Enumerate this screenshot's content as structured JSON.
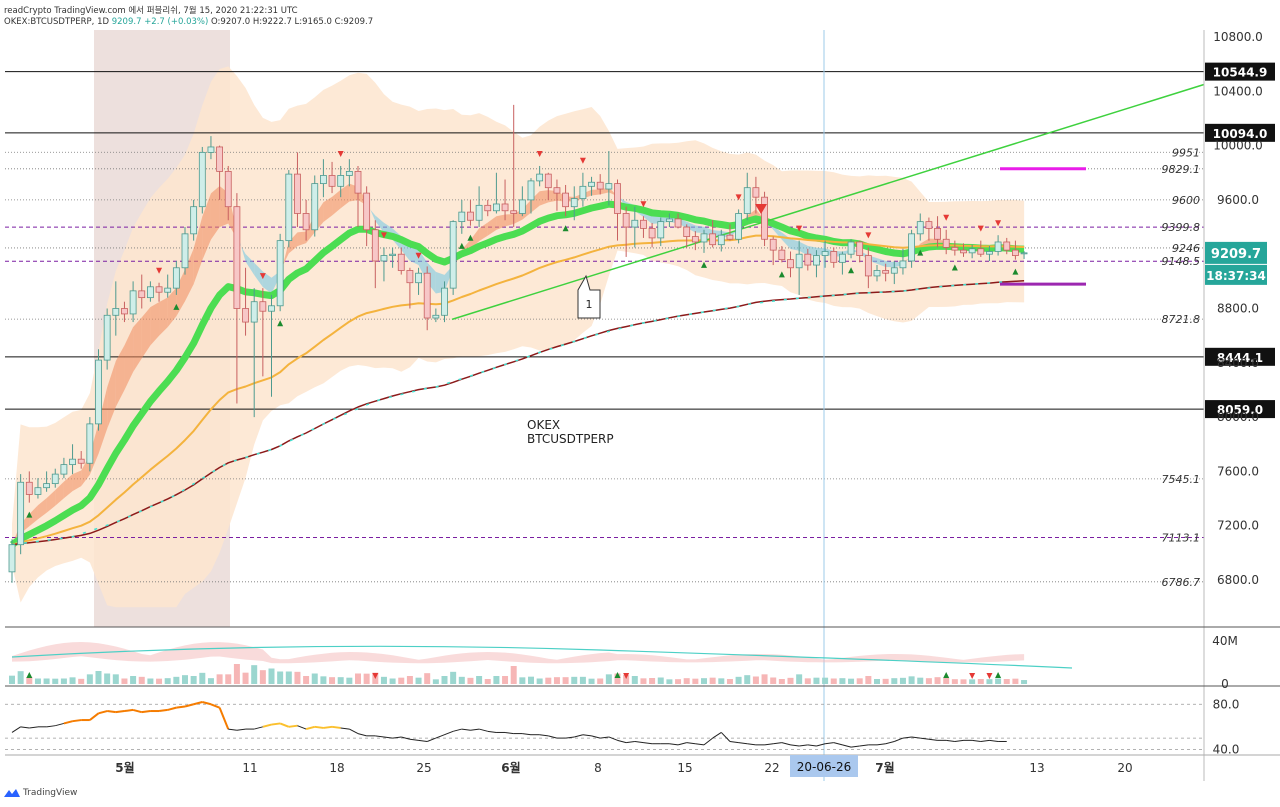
{
  "header": {
    "source_line": "readCrypto TradingView.com 에서 퍼블리쉬, 7월 15, 2020 21:22:31 UTC",
    "symbol": "OKEX:BTCUSDTPERP, 1D",
    "last": "9209.7",
    "change": "+2.7 (+0.03%)",
    "ohlc": "O:9207.0 H:9222.7 L:9165.0 C:9209.7"
  },
  "footer": {
    "brand": "TradingView"
  },
  "watermark": {
    "line1": "OKEX",
    "line2": "BTCUSDTPERP"
  },
  "colors": {
    "up": "#26a69a",
    "down": "#ef5350",
    "band": "#fde5cf",
    "selection": "#ede0dd",
    "ema_green": "#4cdd52",
    "ema_orange": "#f4b33e",
    "magenta": "#e91ee9",
    "purple": "#9c27b0"
  },
  "chart_data": {
    "type": "candlestick",
    "symbol": "OKEX:BTCUSDTPERP",
    "timeframe": "1D",
    "ylim": [
      6500,
      10900
    ],
    "y_ticks": [
      "6800.0",
      "7200.0",
      "7600.0",
      "8000.0",
      "8400.0",
      "8800.0",
      "9200.0",
      "9600.0",
      "10000.0",
      "10400.0",
      "10800.0"
    ],
    "x_ticks": [
      "5월",
      "11",
      "18",
      "25",
      "6월",
      "8",
      "15",
      "22",
      "7월",
      "13",
      "20"
    ],
    "x_crosshair_label": "20-06-26",
    "levels_boxed": [
      {
        "value": 10544.9,
        "label": "10544.9"
      },
      {
        "value": 10094.0,
        "label": "10094.0"
      },
      {
        "value": 8444.1,
        "label": "8444.1"
      },
      {
        "value": 8059.0,
        "label": "8059.0"
      }
    ],
    "levels_dotted": [
      {
        "value": 9951,
        "label": "9951"
      },
      {
        "value": 9829.1,
        "label": "9829.1"
      },
      {
        "value": 9600,
        "label": "9600"
      },
      {
        "value": 9399.8,
        "label": "9399.8"
      },
      {
        "value": 9246,
        "label": "9246"
      },
      {
        "value": 9148.5,
        "label": "9148.5"
      },
      {
        "value": 8721.8,
        "label": "8721.8"
      },
      {
        "value": 7545.1,
        "label": "7545.1"
      },
      {
        "value": 7113.1,
        "label": "7113.1"
      },
      {
        "value": 6786.7,
        "label": "6786.7"
      }
    ],
    "last_price": {
      "value": 9209.7,
      "label": "9209.7",
      "countdown": "18:37:34"
    },
    "annotation": "1",
    "candles_ohlc": [
      [
        6860,
        7100,
        6780,
        7060
      ],
      [
        7060,
        7580,
        6990,
        7520
      ],
      [
        7520,
        7600,
        7370,
        7430
      ],
      [
        7430,
        7550,
        7400,
        7480
      ],
      [
        7480,
        7600,
        7450,
        7510
      ],
      [
        7510,
        7620,
        7480,
        7580
      ],
      [
        7580,
        7700,
        7550,
        7650
      ],
      [
        7650,
        7800,
        7580,
        7690
      ],
      [
        7690,
        7750,
        7620,
        7660
      ],
      [
        7660,
        8000,
        7600,
        7950
      ],
      [
        7950,
        8500,
        7900,
        8420
      ],
      [
        8420,
        8800,
        8350,
        8750
      ],
      [
        8750,
        9000,
        8600,
        8800
      ],
      [
        8800,
        8850,
        8700,
        8760
      ],
      [
        8760,
        9000,
        8700,
        8930
      ],
      [
        8930,
        9050,
        8800,
        8880
      ],
      [
        8880,
        9000,
        8850,
        8960
      ],
      [
        8960,
        8990,
        8850,
        8920
      ],
      [
        8920,
        9050,
        8880,
        8950
      ],
      [
        8950,
        9150,
        8900,
        9100
      ],
      [
        9100,
        9400,
        9050,
        9350
      ],
      [
        9350,
        9600,
        9300,
        9550
      ],
      [
        9550,
        9990,
        9500,
        9950
      ],
      [
        9950,
        10070,
        9900,
        9990
      ],
      [
        9990,
        10000,
        9600,
        9810
      ],
      [
        9810,
        9850,
        9450,
        9550
      ],
      [
        9550,
        9650,
        8100,
        8800
      ],
      [
        8800,
        9100,
        8600,
        8700
      ],
      [
        8700,
        8950,
        8000,
        8850
      ],
      [
        8850,
        8950,
        8300,
        8780
      ],
      [
        8780,
        8900,
        8150,
        8820
      ],
      [
        8820,
        9350,
        8780,
        9300
      ],
      [
        9300,
        9820,
        9250,
        9790
      ],
      [
        9790,
        9950,
        9400,
        9500
      ],
      [
        9500,
        9600,
        9300,
        9380
      ],
      [
        9380,
        9780,
        9330,
        9720
      ],
      [
        9720,
        9900,
        9620,
        9780
      ],
      [
        9780,
        9880,
        9650,
        9700
      ],
      [
        9700,
        9850,
        9620,
        9780
      ],
      [
        9780,
        9900,
        9700,
        9810
      ],
      [
        9810,
        9850,
        9400,
        9650
      ],
      [
        9650,
        9700,
        9260,
        9380
      ],
      [
        9380,
        9450,
        8950,
        9150
      ],
      [
        9150,
        9250,
        9000,
        9190
      ],
      [
        9190,
        9250,
        9100,
        9200
      ],
      [
        9200,
        9250,
        9050,
        9080
      ],
      [
        9080,
        9100,
        8800,
        8990
      ],
      [
        8990,
        9100,
        8900,
        9060
      ],
      [
        9060,
        9110,
        8640,
        8730
      ],
      [
        8730,
        8800,
        8700,
        8750
      ],
      [
        8750,
        9000,
        8700,
        8950
      ],
      [
        8950,
        9450,
        8900,
        9440
      ],
      [
        9440,
        9600,
        9350,
        9510
      ],
      [
        9510,
        9600,
        9410,
        9450
      ],
      [
        9450,
        9700,
        9400,
        9560
      ],
      [
        9560,
        9600,
        9480,
        9520
      ],
      [
        9520,
        9800,
        9500,
        9570
      ],
      [
        9570,
        9750,
        9450,
        9520
      ],
      [
        9520,
        10300,
        9400,
        9500
      ],
      [
        9500,
        9700,
        9480,
        9600
      ],
      [
        9600,
        9760,
        9500,
        9740
      ],
      [
        9740,
        9850,
        9700,
        9790
      ],
      [
        9790,
        9800,
        9600,
        9690
      ],
      [
        9690,
        9750,
        9520,
        9650
      ],
      [
        9650,
        9710,
        9480,
        9550
      ],
      [
        9550,
        9700,
        9450,
        9610
      ],
      [
        9610,
        9800,
        9550,
        9700
      ],
      [
        9700,
        9770,
        9630,
        9730
      ],
      [
        9730,
        9790,
        9640,
        9680
      ],
      [
        9680,
        9960,
        9560,
        9720
      ],
      [
        9720,
        9750,
        9300,
        9500
      ],
      [
        9500,
        9550,
        9180,
        9400
      ],
      [
        9400,
        9550,
        9250,
        9450
      ],
      [
        9450,
        9480,
        9320,
        9390
      ],
      [
        9390,
        9430,
        9250,
        9320
      ],
      [
        9320,
        9470,
        9260,
        9440
      ],
      [
        9440,
        9500,
        9400,
        9460
      ],
      [
        9460,
        9500,
        9390,
        9400
      ],
      [
        9400,
        9420,
        9250,
        9330
      ],
      [
        9330,
        9370,
        9230,
        9290
      ],
      [
        9290,
        9380,
        9210,
        9350
      ],
      [
        9350,
        9450,
        9250,
        9270
      ],
      [
        9270,
        9380,
        9220,
        9340
      ],
      [
        9340,
        9420,
        9300,
        9310
      ],
      [
        9310,
        9530,
        9280,
        9500
      ],
      [
        9500,
        9800,
        9450,
        9690
      ],
      [
        9690,
        9770,
        9500,
        9620
      ],
      [
        9620,
        9660,
        9260,
        9310
      ],
      [
        9310,
        9330,
        9120,
        9230
      ],
      [
        9230,
        9260,
        9140,
        9160
      ],
      [
        9160,
        9220,
        9030,
        9100
      ],
      [
        9100,
        9300,
        8900,
        9200
      ],
      [
        9200,
        9240,
        9080,
        9120
      ],
      [
        9120,
        9230,
        9030,
        9190
      ],
      [
        9190,
        9300,
        9100,
        9220
      ],
      [
        9220,
        9250,
        9100,
        9140
      ],
      [
        9140,
        9220,
        9050,
        9200
      ],
      [
        9200,
        9310,
        9170,
        9290
      ],
      [
        9290,
        9300,
        9140,
        9190
      ],
      [
        9190,
        9250,
        8950,
        9040
      ],
      [
        9040,
        9120,
        9000,
        9080
      ],
      [
        9080,
        9130,
        9000,
        9060
      ],
      [
        9060,
        9150,
        8980,
        9100
      ],
      [
        9100,
        9240,
        9050,
        9150
      ],
      [
        9150,
        9380,
        9100,
        9350
      ],
      [
        9350,
        9500,
        9300,
        9440
      ],
      [
        9440,
        9470,
        9300,
        9390
      ],
      [
        9390,
        9480,
        9250,
        9310
      ],
      [
        9310,
        9380,
        9200,
        9250
      ],
      [
        9250,
        9300,
        9190,
        9230
      ],
      [
        9230,
        9280,
        9180,
        9210
      ],
      [
        9210,
        9270,
        9170,
        9240
      ],
      [
        9240,
        9300,
        9180,
        9200
      ],
      [
        9200,
        9260,
        9150,
        9220
      ],
      [
        9220,
        9340,
        9190,
        9290
      ],
      [
        9290,
        9320,
        9200,
        9230
      ],
      [
        9230,
        9300,
        9160,
        9190
      ],
      [
        9207,
        9223,
        9165,
        9210
      ]
    ],
    "volume_axis_ticks": [
      "40M",
      "0"
    ],
    "oscillator_axis_ticks": [
      "80.0",
      "40.0"
    ],
    "oscillator_levels": [
      80,
      50,
      40
    ],
    "oscillator_ylim": [
      35,
      90
    ],
    "oscillator_values": [
      55,
      60,
      59,
      60,
      60,
      61,
      63,
      65,
      66,
      66,
      72,
      74,
      73,
      74,
      75,
      73,
      74,
      74,
      75,
      77,
      78,
      80,
      82,
      80,
      77,
      58,
      57,
      58,
      58,
      60,
      62,
      63,
      60,
      61,
      58,
      60,
      59,
      60,
      59,
      58,
      54,
      52,
      52,
      51,
      50,
      51,
      49,
      48,
      47,
      50,
      53,
      56,
      58,
      57,
      58,
      56,
      55,
      55,
      54,
      54,
      53,
      53,
      52,
      50,
      50,
      51,
      53,
      52,
      50,
      51,
      48,
      46,
      47,
      46,
      45,
      45,
      45,
      44,
      46,
      45,
      44,
      50,
      55,
      47,
      46,
      45,
      44,
      44,
      45,
      46,
      44,
      43,
      44,
      43,
      45,
      46,
      44,
      42,
      43,
      44,
      44,
      45,
      47,
      50,
      51,
      50,
      49,
      48,
      48,
      47,
      48,
      48,
      47,
      48,
      47,
      47
    ]
  }
}
